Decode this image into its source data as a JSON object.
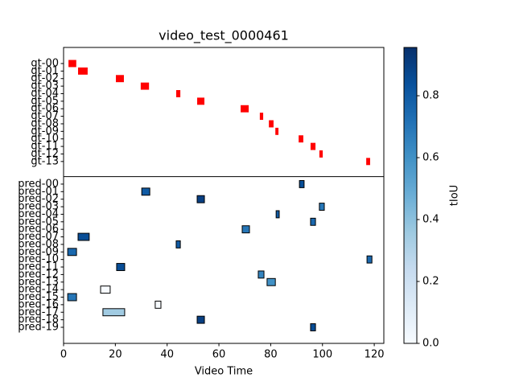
{
  "chart_data": {
    "type": "segments",
    "title": "video_test_0000461",
    "x_label": "Video Time",
    "xlim": [
      0,
      123.7
    ],
    "xticks": [
      0,
      20,
      40,
      60,
      80,
      100,
      120
    ],
    "ground_truth": {
      "color": "#ff0000",
      "labels": [
        "gt-00",
        "gt-01",
        "gt-02",
        "gt-03",
        "gt-04",
        "gt-05",
        "gt-06",
        "gt-07",
        "gt-08",
        "gt-09",
        "gt-10",
        "gt-11",
        "gt-12",
        "gt-13"
      ],
      "start": [
        1.9,
        5.6,
        20.2,
        29.8,
        43.5,
        51.6,
        68.4,
        75.8,
        79.3,
        81.8,
        90.8,
        95.4,
        98.8,
        116.9
      ],
      "end": [
        4.9,
        9.3,
        23.3,
        33.0,
        45.1,
        54.4,
        71.5,
        77.1,
        81.1,
        83.0,
        92.6,
        97.3,
        100.1,
        118.4
      ]
    },
    "predictions": {
      "labels": [
        "pred-00",
        "pred-01",
        "pred-02",
        "pred-03",
        "pred-04",
        "pred-05",
        "pred-06",
        "pred-07",
        "pred-08",
        "pred-09",
        "pred-10",
        "pred-11",
        "pred-12",
        "pred-13",
        "pred-14",
        "pred-15",
        "pred-16",
        "pred-17",
        "pred-18",
        "pred-19"
      ],
      "start": [
        91.1,
        30.2,
        51.6,
        98.8,
        82.1,
        95.4,
        69.0,
        5.6,
        43.5,
        1.6,
        117.2,
        20.5,
        75.2,
        78.6,
        14.3,
        1.6,
        35.4,
        15.2,
        51.6,
        95.4
      ],
      "end": [
        92.9,
        33.3,
        54.4,
        100.7,
        83.3,
        97.3,
        71.8,
        9.9,
        45.1,
        5.0,
        119.1,
        23.6,
        77.4,
        81.8,
        18.0,
        5.0,
        37.6,
        23.6,
        54.4,
        97.3
      ],
      "tiou": [
        0.85,
        0.8,
        0.9,
        0.7,
        0.8,
        0.75,
        0.7,
        0.85,
        0.8,
        0.75,
        0.75,
        0.85,
        0.65,
        0.6,
        0.0,
        0.7,
        0.0,
        0.35,
        0.9,
        0.85
      ]
    },
    "colorbar": {
      "label": "tIoU",
      "colormap": "Blues",
      "clim": [
        0,
        0.956
      ],
      "ticks": [
        {
          "value": 0,
          "label": "0.0"
        },
        {
          "value": 0.2,
          "label": "0.2"
        },
        {
          "value": 0.4,
          "label": "0.4"
        },
        {
          "value": 0.6,
          "label": "0.6"
        },
        {
          "value": 0.8,
          "label": "0.8"
        }
      ]
    }
  }
}
